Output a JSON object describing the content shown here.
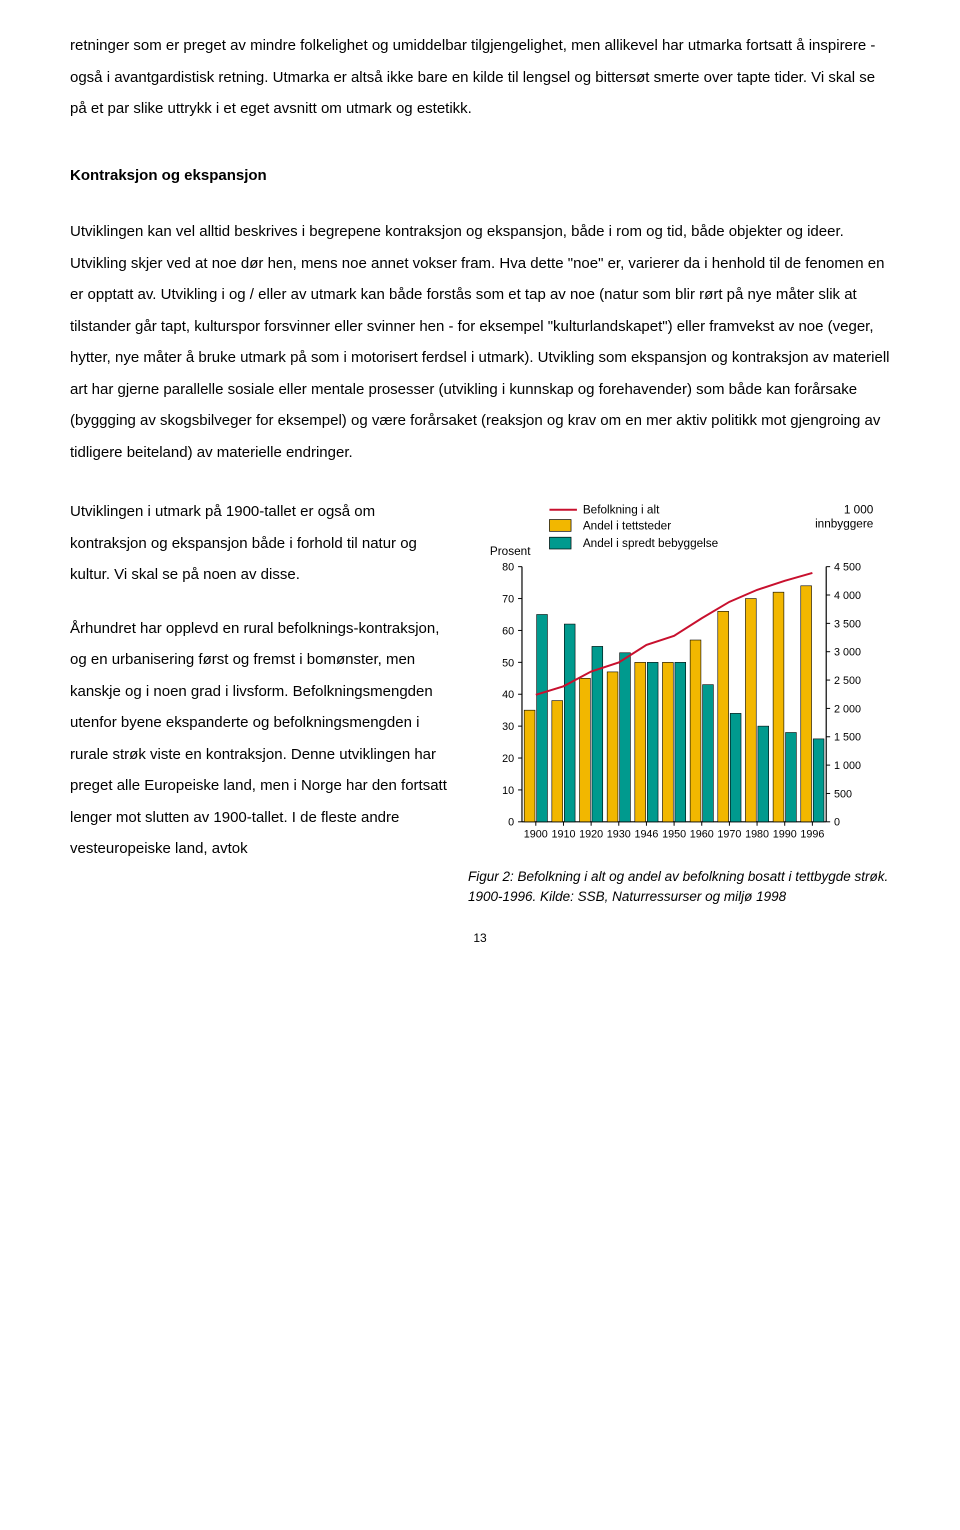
{
  "paragraphs": {
    "p1": "retninger som er preget av mindre folkelighet og umiddelbar tilgjengelighet, men allikevel har utmarka fortsatt å inspirere - også i avantgardistisk retning. Utmarka er altså ikke bare en kilde til lengsel og bittersøt smerte over tapte tider. Vi skal se på et par slike uttrykk i et eget avsnitt om utmark og estetikk.",
    "heading": "Kontraksjon og ekspansjon",
    "p2": "Utviklingen kan vel alltid  beskrives i begrepene kontraksjon og ekspansjon, både i rom og tid, både objekter og ideer. Utvikling skjer ved at noe dør hen, mens noe annet vokser fram. Hva dette \"noe\" er, varierer da i henhold til de fenomen en er opptatt av. Utvikling i og / eller av utmark kan både forstås som et tap av noe (natur som blir rørt på nye måter slik at tilstander går tapt, kulturspor forsvinner eller svinner hen - for eksempel \"kulturlandskapet\") eller framvekst av noe (veger, hytter, nye måter å bruke utmark på som i motorisert ferdsel i utmark). Utvikling som ekspansjon og kontraksjon av materiell art har gjerne parallelle sosiale eller mentale prosesser (utvikling i kunnskap og forehavender)  som både kan forårsake (byggging av skogsbilveger for eksempel) og være forårsaket (reaksjon og krav om en mer aktiv politikk mot gjengroing av tidligere beiteland) av materielle endringer.",
    "p3": "Utviklingen i utmark på 1900-tallet er også om kontraksjon og ekspansjon både i forhold til natur og kultur. Vi skal se på noen av disse.",
    "p4": "Århundret har opplevd en rural befolknings-kontraksjon, og en urbanisering først og fremst i bomønster, men kanskje og i noen grad i livsform. Befolkningsmengden utenfor byene ekspanderte og befolkningsmengden i rurale strøk viste en kontraksjon. Denne utviklingen har preget alle Europeiske land, men i Norge har den fortsatt lenger mot slutten av 1900-tallet. I de fleste andre vesteuropeiske land, avtok"
  },
  "caption": "Figur 2: Befolkning i alt og andel av befolkning bosatt i tettbygde strøk. 1900-1996. Kilde: SSB, Naturressurser og miljø 1998",
  "pageNumber": "13",
  "chart": {
    "type": "bar-line-combo",
    "background_color": "#ffffff",
    "plot_bg": "#ffffff",
    "axis_color": "#000000",
    "grid_color": "#bfbfbf",
    "left_axis_label": "Prosent",
    "right_axis_label": "1 000\ninnbyggere",
    "legend": [
      {
        "label": "Befolkning i alt",
        "type": "line",
        "color": "#c8102e"
      },
      {
        "label": "Andel i tettsteder",
        "type": "box",
        "color": "#f2b700"
      },
      {
        "label": "Andel i spredt bebyggelse",
        "type": "box",
        "color": "#009a8e"
      }
    ],
    "x_categories": [
      "1900",
      "1910",
      "1920",
      "1930",
      "1946",
      "1950",
      "1960",
      "1970",
      "1980",
      "1990",
      "1996"
    ],
    "y_left_ticks": [
      0,
      10,
      20,
      30,
      40,
      50,
      60,
      70,
      80
    ],
    "y_right_ticks": [
      0,
      500,
      "1 000",
      "1 500",
      "2 000",
      "2 500",
      "3 000",
      "3 500",
      "4 000",
      "4 500"
    ],
    "y_left_max": 80,
    "y_right_max": 4500,
    "series": {
      "tettsteder": {
        "color": "#f2b700",
        "values": [
          35,
          38,
          45,
          47,
          50,
          50,
          57,
          66,
          70,
          72,
          74
        ]
      },
      "spredt": {
        "color": "#009a8e",
        "values": [
          65,
          62,
          55,
          53,
          50,
          50,
          43,
          34,
          30,
          28,
          26
        ]
      },
      "befolkning": {
        "color": "#c8102e",
        "values": [
          2240,
          2390,
          2650,
          2810,
          3120,
          3280,
          3590,
          3880,
          4090,
          4250,
          4390
        ]
      }
    },
    "bar_group_width": 0.78,
    "bar_gap": 0.06,
    "line_width": 2,
    "font_size_axis": 11,
    "font_size_title": 12
  }
}
